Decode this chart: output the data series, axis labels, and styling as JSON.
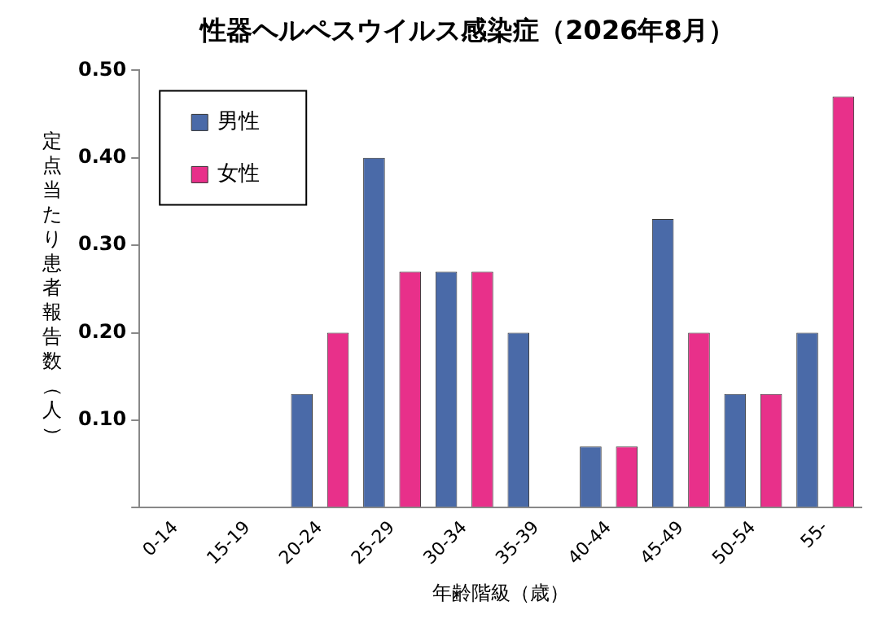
{
  "chart_data": {
    "type": "bar",
    "title": "性器ヘルペスウイルス感染症（2026年8月）",
    "xlabel": "年齢階級（歳）",
    "ylabel": "定点当たり患者報告数（人）",
    "categories": [
      "0-14",
      "15-19",
      "20-24",
      "25-29",
      "30-34",
      "35-39",
      "40-44",
      "45-49",
      "50-54",
      "55-"
    ],
    "series": [
      {
        "name": "男性",
        "color": "#4a6aa8",
        "values": [
          0,
          0,
          0.13,
          0.4,
          0.27,
          0.2,
          0.07,
          0.33,
          0.13,
          0.2
        ]
      },
      {
        "name": "女性",
        "color": "#e8308a",
        "values": [
          0,
          0,
          0.2,
          0.27,
          0.27,
          0,
          0.07,
          0.2,
          0.13,
          0.47
        ]
      }
    ],
    "ylim": [
      0,
      0.5
    ],
    "yticks": [
      {
        "value": 0,
        "label": null
      },
      {
        "value": 0.1,
        "label": "0.10"
      },
      {
        "value": 0.2,
        "label": "0.20"
      },
      {
        "value": 0.3,
        "label": "0.30"
      },
      {
        "value": 0.4,
        "label": "0.40"
      },
      {
        "value": 0.5,
        "label": "0.50"
      }
    ],
    "grid": false,
    "legend": "top left"
  }
}
